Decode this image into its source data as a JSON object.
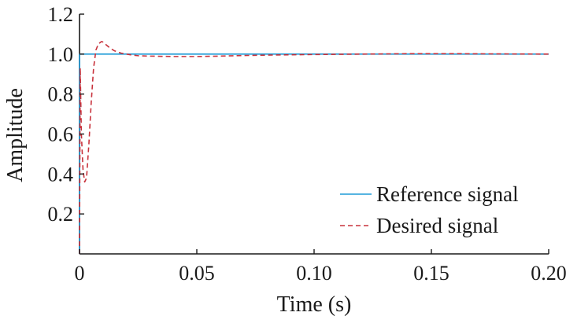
{
  "chart_data": {
    "type": "line",
    "title": "",
    "xlabel": "Time (s)",
    "ylabel": "Amplitude",
    "xlim": [
      0,
      0.2
    ],
    "ylim": [
      0,
      1.2
    ],
    "xticks": [
      0,
      0.05,
      0.1,
      0.15,
      0.2
    ],
    "xtick_labels": [
      "0",
      "0.05",
      "0.10",
      "0.15",
      "0.20"
    ],
    "yticks": [
      0.2,
      0.4,
      0.6,
      0.8,
      1.0,
      1.2
    ],
    "ytick_labels": [
      "0.2",
      "0.4",
      "0.6",
      "0.8",
      "1.0",
      "1.2"
    ],
    "grid": false,
    "legend_position": "bottom-right",
    "series": [
      {
        "name": "Reference signal",
        "color": "#1f9bd7",
        "style": "solid",
        "x": [
          0,
          0,
          0.2
        ],
        "y": [
          0,
          1.0,
          1.0
        ]
      },
      {
        "name": "Desired signal",
        "color": "#c8323c",
        "style": "dashed",
        "x": [
          0,
          0.0003,
          0.0008,
          0.0015,
          0.0022,
          0.003,
          0.004,
          0.005,
          0.006,
          0.007,
          0.008,
          0.009,
          0.0095,
          0.01,
          0.011,
          0.012,
          0.013,
          0.015,
          0.018,
          0.02,
          0.022,
          0.025,
          0.03,
          0.04,
          0.05,
          0.06,
          0.07,
          0.08,
          0.1,
          0.12,
          0.14,
          0.16,
          0.18,
          0.2
        ],
        "y": [
          0,
          0.93,
          0.6,
          0.42,
          0.36,
          0.38,
          0.55,
          0.76,
          0.93,
          1.02,
          1.05,
          1.06,
          1.063,
          1.06,
          1.05,
          1.04,
          1.03,
          1.016,
          1.004,
          1.0,
          0.996,
          0.992,
          0.99,
          0.988,
          0.988,
          0.99,
          0.993,
          0.995,
          0.998,
          1.0,
          1.002,
          1.002,
          1.001,
          1.0
        ]
      }
    ]
  }
}
